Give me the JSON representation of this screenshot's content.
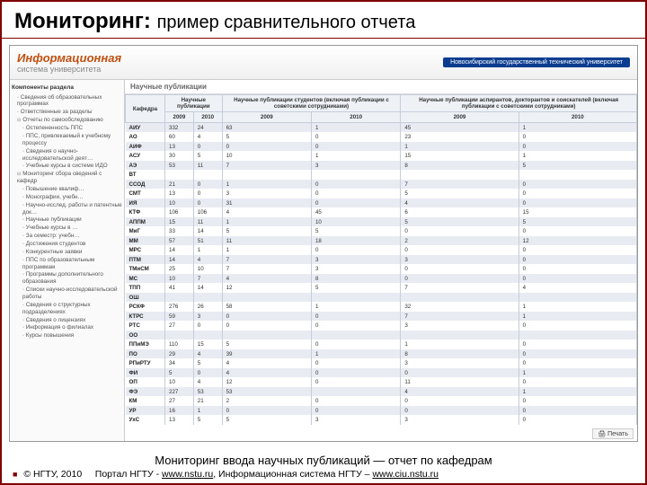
{
  "slide": {
    "title_main": "Мониторинг:",
    "title_sub": "пример сравнительного отчета",
    "caption": "Мониторинг ввода научных публикаций — отчет по кафедрам",
    "footer_copyright": "© НГТУ, 2010",
    "footer_text1": "Портал НГТУ - ",
    "footer_link1": "www.nstu.ru",
    "footer_text2": ", Информационная система НГТУ – ",
    "footer_link2": "www.ciu.nstu.ru"
  },
  "app": {
    "logo": "Информационная",
    "logo_sub": "система университета",
    "uni": "Новосибирский государственный технический университет",
    "sidebar_header": "Компоненты раздела",
    "main_header": "Научные публикации",
    "print": "Печать",
    "sidebar_groups": [
      {
        "label": "Сведения об образовательных программах",
        "cls": ""
      },
      {
        "label": "Ответственные за разделы",
        "cls": ""
      },
      {
        "label": "Отчеты по самообследованию",
        "cls": "node"
      },
      {
        "label": "Остепененность ППС",
        "cls": "sub"
      },
      {
        "label": "ППС, привлекаемый к учебному процессу",
        "cls": "sub"
      },
      {
        "label": "Сведения о научно-исследовательской деят…",
        "cls": "sub"
      },
      {
        "label": "Учебные курсы в системе ИДО",
        "cls": "sub"
      },
      {
        "label": "Мониторинг сбора сведений с кафедр",
        "cls": "node"
      },
      {
        "label": "Повышение квалиф…",
        "cls": "sub"
      },
      {
        "label": "Монографии, учебн…",
        "cls": "sub"
      },
      {
        "label": "Научно-исслед. работы и патентные док…",
        "cls": "sub"
      },
      {
        "label": "Научные публикации",
        "cls": "sub"
      },
      {
        "label": "Учебные курсы в …",
        "cls": "sub"
      },
      {
        "label": "За семестр: учебн…",
        "cls": "sub"
      },
      {
        "label": "Достижения студентов",
        "cls": "sub"
      },
      {
        "label": "Конкурентные заявки",
        "cls": "sub"
      },
      {
        "label": "ППС по образовательным программам",
        "cls": "sub"
      },
      {
        "label": "Программы дополнительного образования",
        "cls": "sub"
      },
      {
        "label": "Списки научно-исследовательской работы",
        "cls": "sub"
      },
      {
        "label": "Сведения о структурных подразделениях",
        "cls": "sub"
      },
      {
        "label": "Сведения о лицензиях",
        "cls": "sub"
      },
      {
        "label": "Информация о филиалах",
        "cls": "sub"
      },
      {
        "label": "Курсы повышения",
        "cls": "sub"
      }
    ]
  },
  "table": {
    "col_dept": "Кафедра",
    "group1": "Научные публикации",
    "group2": "Научные публикации студентов (включая публикации с советскими сотрудниками)",
    "group3": "Научные публикации аспирантов, докторантов и соискателей (включая публикации с советскими сотрудниками)",
    "years": [
      "2009",
      "2010",
      "2009",
      "2010",
      "2009",
      "2010"
    ],
    "rows": [
      [
        "АИУ",
        "332",
        "24",
        "63",
        "1",
        "45",
        "1"
      ],
      [
        "АО",
        "60",
        "4",
        "5",
        "0",
        "23",
        "0"
      ],
      [
        "АИФ",
        "13",
        "0",
        "0",
        "0",
        "1",
        "0"
      ],
      [
        "АСУ",
        "30",
        "5",
        "10",
        "1",
        "15",
        "1"
      ],
      [
        "АЭ",
        "53",
        "11",
        "7",
        "3",
        "8",
        "5"
      ],
      [
        "ВТ",
        "",
        "",
        "",
        "",
        "",
        ""
      ],
      [
        "ССОД",
        "21",
        "0",
        "1",
        "0",
        "7",
        "0"
      ],
      [
        "СМТ",
        "13",
        "0",
        "3",
        "0",
        "5",
        "0"
      ],
      [
        "ИЯ",
        "10",
        "0",
        "31",
        "0",
        "4",
        "0"
      ],
      [
        "КТФ",
        "106",
        "106",
        "4",
        "45",
        "6",
        "15"
      ],
      [
        "АППМ",
        "15",
        "11",
        "1",
        "10",
        "5",
        "5"
      ],
      [
        "МиГ",
        "33",
        "14",
        "5",
        "5",
        "0",
        "0"
      ],
      [
        "ММ",
        "57",
        "51",
        "11",
        "18",
        "2",
        "12"
      ],
      [
        "МРС",
        "14",
        "1",
        "1",
        "0",
        "0",
        "0"
      ],
      [
        "ПТМ",
        "14",
        "4",
        "7",
        "3",
        "3",
        "0"
      ],
      [
        "ТМиСМ",
        "25",
        "10",
        "7",
        "3",
        "0",
        "0"
      ],
      [
        "МС",
        "10",
        "7",
        "4",
        "8",
        "0",
        "0"
      ],
      [
        "ТПП",
        "41",
        "14",
        "12",
        "5",
        "7",
        "4"
      ],
      [
        "ОШ",
        "",
        "",
        "",
        "",
        "",
        ""
      ],
      [
        "РСКФ",
        "276",
        "26",
        "58",
        "1",
        "32",
        "1"
      ],
      [
        "КТРС",
        "59",
        "3",
        "0",
        "0",
        "7",
        "1"
      ],
      [
        "РТС",
        "27",
        "0",
        "0",
        "0",
        "3",
        "0"
      ],
      [
        "ОО",
        "",
        "",
        "",
        "",
        "",
        ""
      ],
      [
        "ППиМЭ",
        "110",
        "15",
        "5",
        "0",
        "1",
        "0"
      ],
      [
        "ПО",
        "29",
        "4",
        "39",
        "1",
        "8",
        "0"
      ],
      [
        "РПиРТУ",
        "34",
        "5",
        "4",
        "0",
        "3",
        "0"
      ],
      [
        "ФИ",
        "5",
        "0",
        "4",
        "0",
        "0",
        "1"
      ],
      [
        "ОП",
        "10",
        "4",
        "12",
        "0",
        "11",
        "0"
      ],
      [
        "ФЭ",
        "227",
        "53",
        "53",
        "",
        "4",
        "1"
      ],
      [
        "КМ",
        "27",
        "21",
        "2",
        "0",
        "0",
        "0"
      ],
      [
        "УР",
        "16",
        "1",
        "0",
        "0",
        "0",
        "0"
      ],
      [
        "УхС",
        "13",
        "5",
        "5",
        "3",
        "3",
        "0"
      ]
    ]
  },
  "style": {
    "accent": "#800000",
    "header_bg": "#eef2f7",
    "row_odd": "#e8ecf2",
    "row_even": "#ffffff",
    "logo_color": "#c05010",
    "uni_bg": "#0a3d8f"
  }
}
